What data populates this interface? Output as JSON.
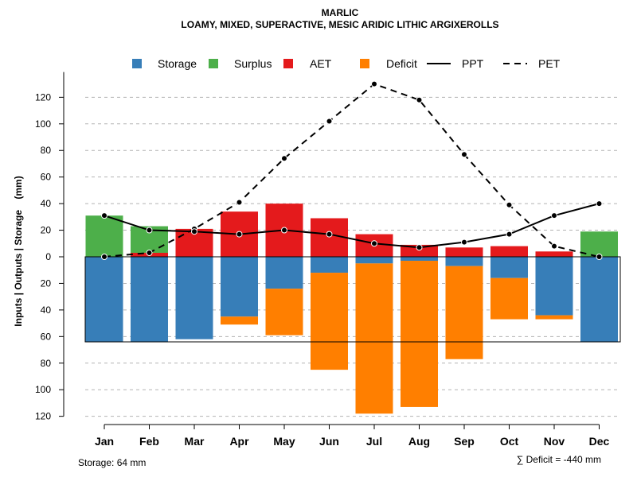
{
  "chart_data": {
    "type": "bar",
    "title": "MARLIC",
    "subtitle": "LOAMY, MIXED, SUPERACTIVE, MESIC ARIDIC LITHIC ARGIXEROLLS",
    "ylabel": "Inputs | Outputs | Storage    (mm)",
    "xlabel": "",
    "categories": [
      "Jan",
      "Feb",
      "Mar",
      "Apr",
      "May",
      "Jun",
      "Jul",
      "Aug",
      "Sep",
      "Oct",
      "Nov",
      "Dec"
    ],
    "ylim": [
      -120,
      130
    ],
    "yticks": [
      120,
      100,
      80,
      60,
      40,
      20,
      0,
      -20,
      -40,
      -60,
      -80,
      -100,
      -120
    ],
    "ytick_labels": [
      "120",
      "100",
      "80",
      "60",
      "40",
      "20",
      "0",
      "20",
      "40",
      "60",
      "80",
      "100",
      "120"
    ],
    "grid": true,
    "legend_position": "top",
    "legend": [
      {
        "name": "Storage",
        "kind": "square",
        "color": "#377EB8"
      },
      {
        "name": "Surplus",
        "kind": "square",
        "color": "#4DAF4A"
      },
      {
        "name": "AET",
        "kind": "square",
        "color": "#E41A1C"
      },
      {
        "name": "Deficit",
        "kind": "square",
        "color": "#FF7F00"
      },
      {
        "name": "PPT",
        "kind": "solid-line",
        "color": "#000000"
      },
      {
        "name": "PET",
        "kind": "dashed-line",
        "color": "#000000"
      }
    ],
    "series": [
      {
        "name": "Surplus",
        "color": "#4DAF4A",
        "values": [
          31,
          20,
          0,
          0,
          0,
          0,
          0,
          0,
          0,
          0,
          0,
          19
        ]
      },
      {
        "name": "AET",
        "color": "#E41A1C",
        "values": [
          0,
          3,
          21,
          34,
          40,
          29,
          17,
          9,
          7,
          8,
          4,
          0
        ]
      },
      {
        "name": "Storage",
        "color": "#377EB8",
        "values": [
          64,
          64,
          62,
          45,
          24,
          12,
          5,
          3,
          7,
          16,
          44,
          64
        ]
      },
      {
        "name": "Deficit",
        "color": "#FF7F00",
        "values": [
          0,
          0,
          0,
          6,
          35,
          73,
          113,
          110,
          70,
          31,
          3,
          0
        ]
      },
      {
        "name": "PPT",
        "color": "#000000",
        "values": [
          31,
          20,
          19,
          17,
          20,
          17,
          10,
          7,
          11,
          17,
          31,
          40
        ]
      },
      {
        "name": "PET",
        "color": "#000000",
        "values": [
          0,
          3,
          21,
          41,
          74,
          102,
          130,
          118,
          77,
          39,
          8,
          0
        ]
      }
    ],
    "storage_capacity": 64,
    "annotations": {
      "storage": "Storage: 64 mm",
      "deficit": "∑ Deficit = -440 mm"
    }
  }
}
